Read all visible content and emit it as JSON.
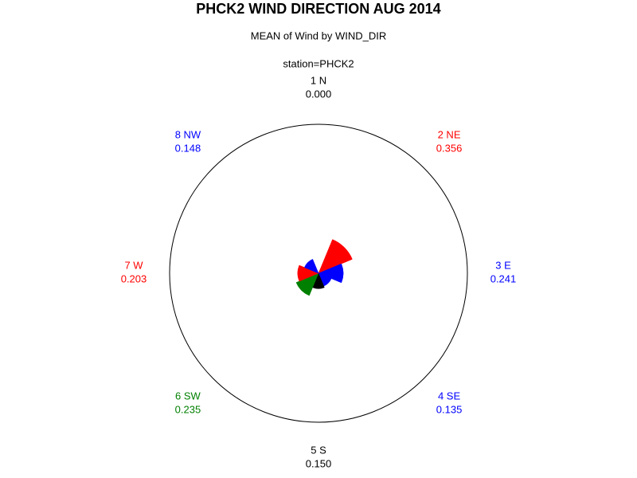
{
  "chart_data": {
    "type": "star",
    "title": "PHCK2 WIND DIRECTION AUG 2014",
    "subtitle": "MEAN of Wind by WIND_DIR",
    "group_label": "station=PHCK2",
    "categories": [
      "1 N",
      "2 NE",
      "3 E",
      "4 SE",
      "5 S",
      "6 SW",
      "7 W",
      "8 NW"
    ],
    "values": [
      0,
      0.356,
      0.241,
      0.135,
      0.15,
      0.235,
      0.203,
      0.148
    ],
    "value_labels": [
      "0.000",
      "0.356",
      "0.241",
      "0.135",
      "0.150",
      "0.235",
      "0.203",
      "0.148"
    ],
    "colors": [
      "#000000",
      "#ff0000",
      "#0000ff",
      "#0000ff",
      "#000000",
      "#008000",
      "#ff0000",
      "#0000ff"
    ],
    "rlim": [
      0,
      1.45
    ]
  }
}
